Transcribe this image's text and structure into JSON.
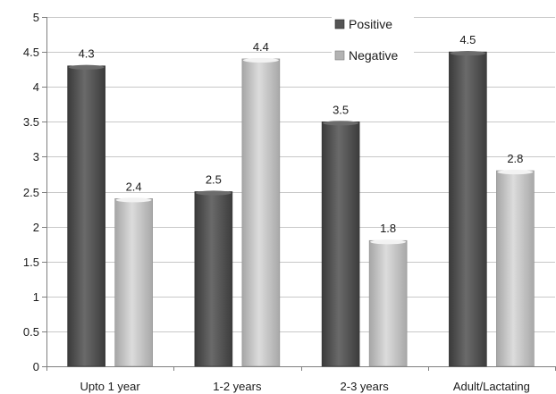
{
  "chart_data": {
    "type": "bar",
    "categories": [
      "Upto 1 year",
      "1-2 years",
      "2-3 years",
      "Adult/Lactating"
    ],
    "series": [
      {
        "name": "Positive",
        "values": [
          4.3,
          2.5,
          3.5,
          4.5
        ],
        "labels": [
          "4.3",
          "2.5",
          "3.5",
          "4.5"
        ],
        "color": "#555555"
      },
      {
        "name": "Negative",
        "values": [
          2.4,
          4.4,
          1.8,
          2.8
        ],
        "labels": [
          "2.4",
          "4.4",
          "1.8",
          "2.8"
        ],
        "color": "#b3b3b3"
      }
    ],
    "ylim": [
      0,
      5
    ],
    "yticks": [
      {
        "value": 0,
        "label": "0"
      },
      {
        "value": 0.5,
        "label": "0.5"
      },
      {
        "value": 1,
        "label": "1"
      },
      {
        "value": 1.5,
        "label": "1.5"
      },
      {
        "value": 2,
        "label": "2"
      },
      {
        "value": 2.5,
        "label": "2.5"
      },
      {
        "value": 3,
        "label": "3"
      },
      {
        "value": 3.5,
        "label": "3.5"
      },
      {
        "value": 4,
        "label": "4"
      },
      {
        "value": 4.5,
        "label": "4.5"
      },
      {
        "value": 5,
        "label": "5"
      }
    ],
    "grid": true,
    "legend": "top-center",
    "title": "",
    "xlabel": "",
    "ylabel": ""
  }
}
